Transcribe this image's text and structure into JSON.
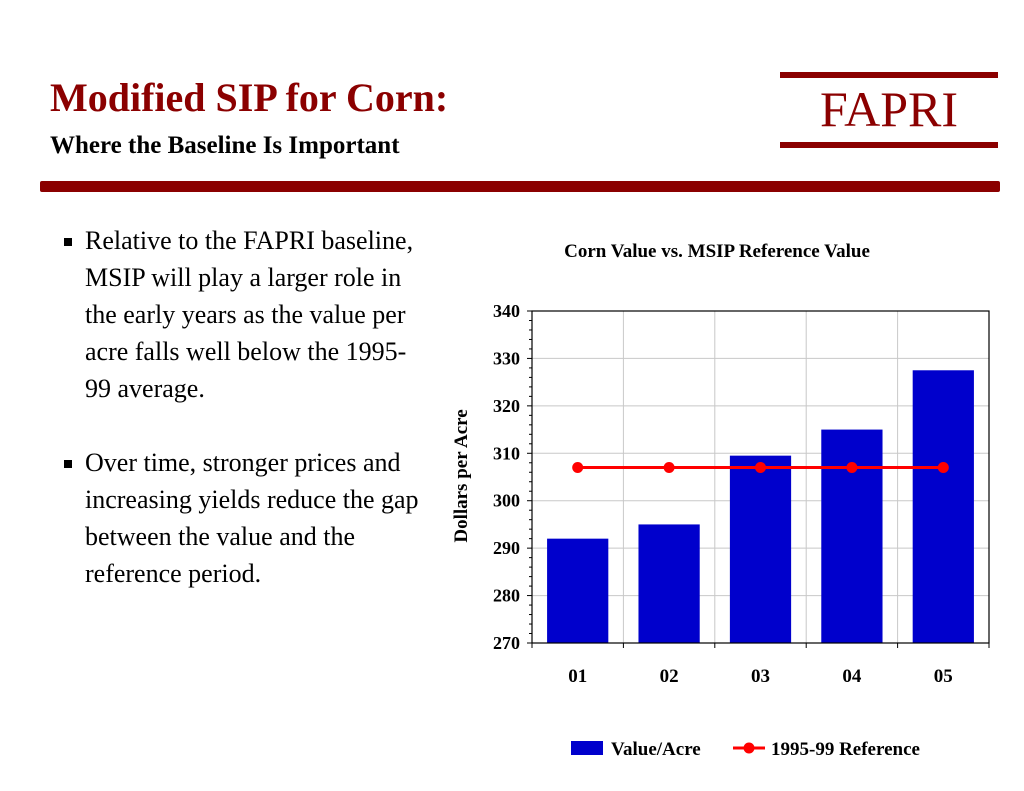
{
  "header": {
    "title": "Modified SIP for Corn:",
    "subtitle": "Where the Baseline Is Important",
    "logo": "FAPRI"
  },
  "colors": {
    "brand": "#8b0000",
    "bar": "#0000cc",
    "reference": "#ff0000"
  },
  "bullets": [
    "Relative to the FAPRI baseline, MSIP will play a larger role in the early years as the value per acre falls well below the 1995-99 average.",
    "Over time, stronger prices and increasing yields reduce the gap between the value and the reference period."
  ],
  "chart_data": {
    "type": "bar",
    "title": "Corn Value vs. MSIP Reference Value",
    "xlabel": "",
    "ylabel": "Dollars per Acre",
    "categories": [
      "01",
      "02",
      "03",
      "04",
      "05"
    ],
    "ylim": [
      270,
      340
    ],
    "yticks": [
      270,
      280,
      290,
      300,
      310,
      320,
      330,
      340
    ],
    "grid": true,
    "legend_position": "bottom",
    "series": [
      {
        "name": "Value/Acre",
        "kind": "bar",
        "values": [
          292,
          295,
          309.5,
          315,
          327.5
        ]
      },
      {
        "name": "1995-99 Reference",
        "kind": "line",
        "values": [
          307,
          307,
          307,
          307,
          307
        ]
      }
    ]
  }
}
